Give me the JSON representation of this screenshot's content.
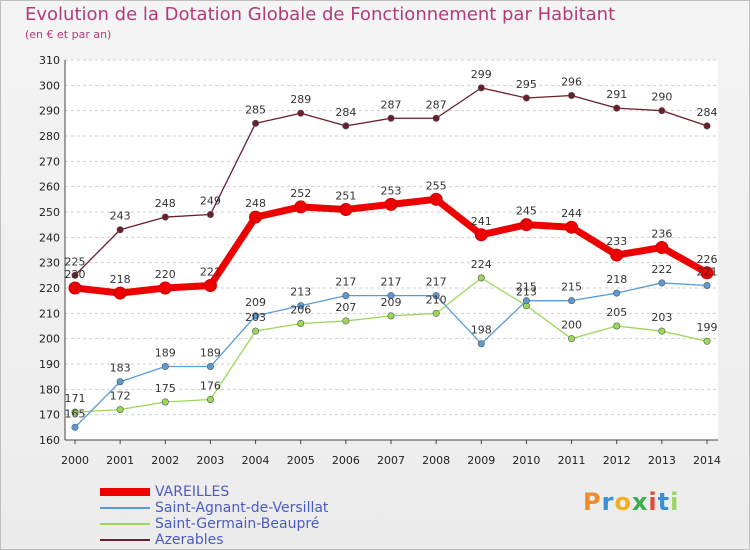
{
  "title": "Evolution de la Dotation Globale de Fonctionnement par Habitant",
  "subtitle": "(en € et par an)",
  "logo_text": "Proxiti",
  "chart_data": {
    "type": "line",
    "x": [
      "2000",
      "2001",
      "2002",
      "2003",
      "2004",
      "2005",
      "2006",
      "2007",
      "2008",
      "2009",
      "2010",
      "2011",
      "2012",
      "2013",
      "2014"
    ],
    "y_ticks": [
      "160",
      "170",
      "180",
      "190",
      "200",
      "210",
      "220",
      "230",
      "240",
      "250",
      "260",
      "270",
      "280",
      "290",
      "300",
      "310"
    ],
    "ylim": [
      160,
      310
    ],
    "grid": "horizontal",
    "legend_position": "bottom-left",
    "series": [
      {
        "name": "VAREILLES",
        "color": "#ee0000",
        "values": [
          220,
          218,
          220,
          221,
          248,
          252,
          251,
          253,
          255,
          241,
          245,
          244,
          233,
          236,
          226
        ],
        "labels": [
          "220",
          "218",
          "220",
          "221",
          "248",
          "252",
          "251",
          "253",
          "255",
          "241",
          "245",
          "244",
          "233",
          "236",
          "226"
        ]
      },
      {
        "name": "Saint-Agnant-de-Versillat",
        "color": "#5b9bd5",
        "values": [
          165,
          183,
          189,
          189,
          209,
          213,
          217,
          217,
          217,
          198,
          215,
          215,
          218,
          222,
          221
        ],
        "labels": [
          "165",
          "183",
          "189",
          "189",
          "209",
          "213",
          "217",
          "217",
          "217",
          "198",
          "215",
          "215",
          "218",
          "222",
          "221"
        ]
      },
      {
        "name": "Saint-Germain-Beaupré",
        "color": "#9bd85a",
        "values": [
          171,
          172,
          175,
          176,
          203,
          206,
          207,
          209,
          210,
          224,
          213,
          200,
          205,
          203,
          199
        ],
        "labels": [
          "171",
          "172",
          "175",
          "176",
          "203",
          "206",
          "207",
          "209",
          "210",
          "224",
          "213",
          "200",
          "205",
          "203",
          "199"
        ]
      },
      {
        "name": "Azerables",
        "color": "#6b1f2a",
        "values": [
          225,
          243,
          248,
          249,
          285,
          289,
          284,
          287,
          287,
          299,
          295,
          296,
          291,
          290,
          284
        ],
        "labels": [
          "225",
          "243",
          "248",
          "249",
          "285",
          "289",
          "284",
          "287",
          "287",
          "299",
          "295",
          "296",
          "291",
          "290",
          "284"
        ]
      }
    ]
  }
}
